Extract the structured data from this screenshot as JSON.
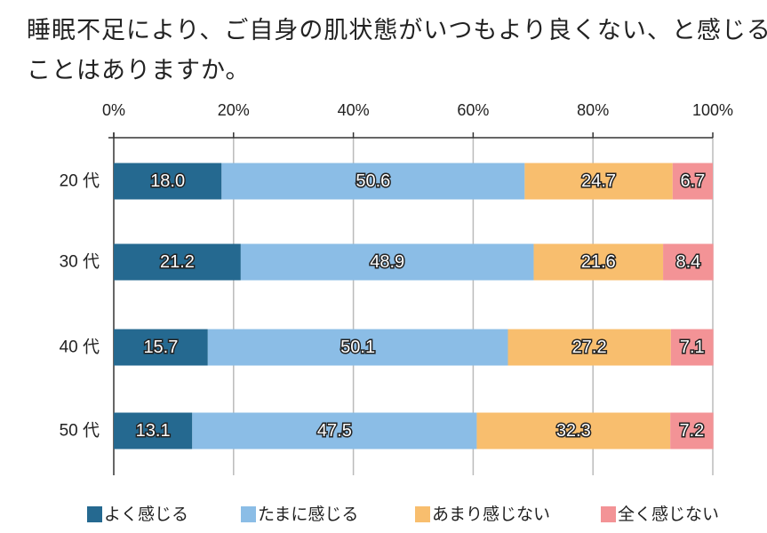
{
  "chart_data": {
    "type": "bar",
    "orientation": "horizontal-stacked-100",
    "title": "睡眠不足により、ご自身の肌状態がいつもより良くない、と感じることはありますか。",
    "categories": [
      "20 代",
      "30 代",
      "40 代",
      "50 代"
    ],
    "xlim": [
      0,
      100
    ],
    "ticks": [
      "0%",
      "20%",
      "40%",
      "60%",
      "80%",
      "100%"
    ],
    "grid": true,
    "legend_position": "bottom",
    "series": [
      {
        "name": "よく感じる",
        "color": "#256990",
        "values": [
          18.0,
          21.2,
          15.7,
          13.1
        ]
      },
      {
        "name": "たまに感じる",
        "color": "#8bbde6",
        "values": [
          50.6,
          48.9,
          50.1,
          47.5
        ]
      },
      {
        "name": "あまり感じない",
        "color": "#f8be6e",
        "values": [
          24.7,
          21.6,
          27.2,
          32.3
        ]
      },
      {
        "name": "全く感じない",
        "color": "#f39396",
        "values": [
          6.7,
          8.4,
          7.1,
          7.2
        ]
      }
    ]
  }
}
